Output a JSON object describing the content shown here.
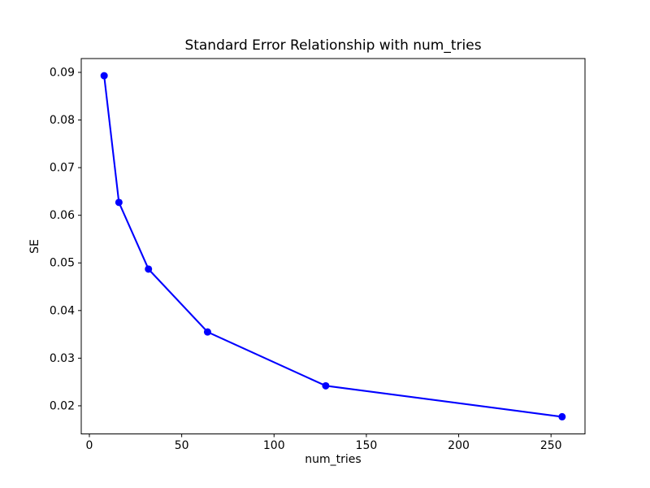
{
  "chart_data": {
    "type": "line",
    "title": "Standard Error Relationship with num_tries",
    "xlabel": "num_tries",
    "ylabel": "SE",
    "x": [
      8,
      16,
      32,
      64,
      128,
      256
    ],
    "series": [
      {
        "name": "SE",
        "values": [
          0.0893,
          0.0627,
          0.0487,
          0.0355,
          0.0242,
          0.0177
        ],
        "color": "#0000ff",
        "marker": "o",
        "linestyle": "solid"
      }
    ],
    "xlim": [
      -4.4,
      268.4
    ],
    "ylim": [
      0.0141,
      0.0929
    ],
    "xticks": [
      0,
      50,
      100,
      150,
      200,
      250
    ],
    "yticks": [
      0.02,
      0.03,
      0.04,
      0.05,
      0.06,
      0.07,
      0.08,
      0.09
    ],
    "ytick_decimals": 2,
    "grid": false,
    "legend_position": "none",
    "background_color": "#ffffff",
    "text_color": "#000000",
    "spine_color": "#000000"
  }
}
